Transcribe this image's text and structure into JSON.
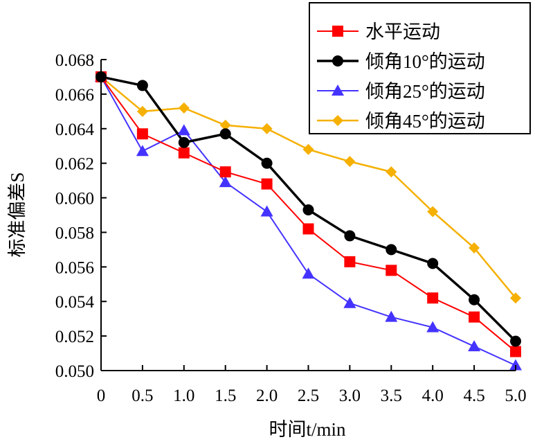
{
  "chart_data": {
    "type": "line",
    "title": "",
    "xlabel": "时间t/min",
    "ylabel": "标准偏差S",
    "x": [
      0,
      0.5,
      1.0,
      1.5,
      2.0,
      2.5,
      3.0,
      3.5,
      4.0,
      4.5,
      5.0
    ],
    "x_tick_labels": [
      "0",
      "0.5",
      "1.0",
      "1.5",
      "2.0",
      "2.5",
      "3.0",
      "3.5",
      "4.0",
      "4.5",
      "5.0"
    ],
    "xlim": [
      0,
      5.0
    ],
    "ylim": [
      0.05,
      0.068
    ],
    "y_tick_labels": [
      "0.050",
      "0.052",
      "0.054",
      "0.056",
      "0.058",
      "0.060",
      "0.062",
      "0.064",
      "0.066",
      "0.068"
    ],
    "y_ticks": [
      0.05,
      0.052,
      0.054,
      0.056,
      0.058,
      0.06,
      0.062,
      0.064,
      0.066,
      0.068
    ],
    "grid": false,
    "legend_position": "top-right",
    "series": [
      {
        "name": "水平运动",
        "color": "#ff0000",
        "marker": "square",
        "line_width": 2,
        "values": [
          0.067,
          0.0637,
          0.0626,
          0.0615,
          0.0608,
          0.0582,
          0.0563,
          0.0558,
          0.0542,
          0.0531,
          0.0511
        ]
      },
      {
        "name": "倾角10°的运动",
        "color": "#000000",
        "marker": "circle",
        "line_width": 3.5,
        "values": [
          0.067,
          0.0665,
          0.0632,
          0.0637,
          0.062,
          0.0593,
          0.0578,
          0.057,
          0.0562,
          0.0541,
          0.0517
        ]
      },
      {
        "name": "倾角25°的运动",
        "color": "#4433ff",
        "marker": "triangle",
        "line_width": 2,
        "values": [
          0.067,
          0.0627,
          0.0639,
          0.0609,
          0.0592,
          0.0556,
          0.0539,
          0.0531,
          0.0525,
          0.0514,
          0.0503
        ]
      },
      {
        "name": "倾角45°的运动",
        "color": "#f5b000",
        "marker": "diamond",
        "line_width": 2.5,
        "values": [
          0.067,
          0.065,
          0.0652,
          0.0642,
          0.064,
          0.0628,
          0.0621,
          0.0615,
          0.0592,
          0.0571,
          0.0542
        ]
      }
    ]
  }
}
